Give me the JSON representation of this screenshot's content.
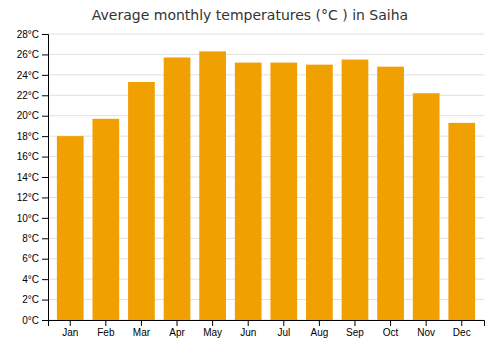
{
  "chart_data": {
    "type": "bar",
    "title": "Average monthly temperatures (°C ) in Saiha",
    "categories": [
      "Jan",
      "Feb",
      "Mar",
      "Apr",
      "May",
      "Jun",
      "Jul",
      "Aug",
      "Sep",
      "Oct",
      "Nov",
      "Dec"
    ],
    "values": [
      18.0,
      19.7,
      23.3,
      25.7,
      26.3,
      25.2,
      25.2,
      25.0,
      25.5,
      24.8,
      22.2,
      19.3
    ],
    "color": "#F0A000",
    "ylim": [
      0,
      28
    ],
    "yticks": [
      {
        "value": 0,
        "label": "0°C"
      },
      {
        "value": 2,
        "label": "2°C"
      },
      {
        "value": 4,
        "label": "4°C"
      },
      {
        "value": 6,
        "label": "6°C"
      },
      {
        "value": 8,
        "label": "8°C"
      },
      {
        "value": 10,
        "label": "10°C"
      },
      {
        "value": 12,
        "label": "12°C"
      },
      {
        "value": 14,
        "label": "14°C"
      },
      {
        "value": 16,
        "label": "16°C"
      },
      {
        "value": 18,
        "label": "18°C"
      },
      {
        "value": 20,
        "label": "20°C"
      },
      {
        "value": 22,
        "label": "22°C"
      },
      {
        "value": 24,
        "label": "24°C"
      },
      {
        "value": 26,
        "label": "26°C"
      },
      {
        "value": 28,
        "label": "28°C"
      }
    ],
    "grid": true
  }
}
